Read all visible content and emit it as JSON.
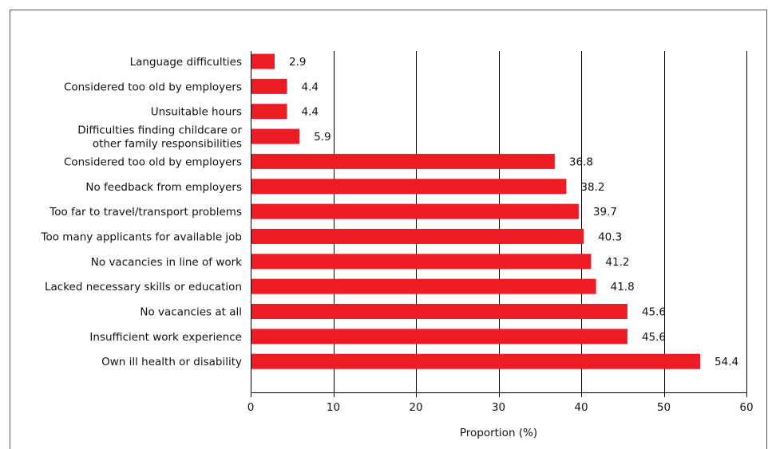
{
  "chart_data": {
    "type": "bar",
    "orientation": "horizontal",
    "title": "",
    "xlabel": "Proportion (%)",
    "ylabel": "",
    "xlim": [
      0,
      60
    ],
    "xticks": [
      0,
      10,
      20,
      30,
      40,
      50,
      60
    ],
    "grid": "vertical",
    "bar_color": "#ed1c24",
    "categories": [
      [
        "Language difficulties"
      ],
      [
        "Considered too old by employers"
      ],
      [
        "Unsuitable hours"
      ],
      [
        "Difficulties finding childcare or",
        "other family responsibilities"
      ],
      [
        "Considered too old by employers"
      ],
      [
        "No feedback from employers"
      ],
      [
        "Too far to travel/transport problems"
      ],
      [
        "Too many applicants for available job"
      ],
      [
        "No vacancies in line of work"
      ],
      [
        "Lacked necessary skills or education"
      ],
      [
        "No vacancies at all"
      ],
      [
        "Insufficient work experience"
      ],
      [
        "Own ill health or disability"
      ]
    ],
    "values": [
      2.9,
      4.4,
      4.4,
      5.9,
      36.8,
      38.2,
      39.7,
      40.3,
      41.2,
      41.8,
      45.6,
      45.6,
      54.4
    ],
    "value_labels": [
      "2.9",
      "4.4",
      "4.4",
      "5.9",
      "36.8",
      "38.2",
      "39.7",
      "40.3",
      "41.2",
      "41.8",
      "45.6",
      "45.6",
      "54.4"
    ]
  }
}
